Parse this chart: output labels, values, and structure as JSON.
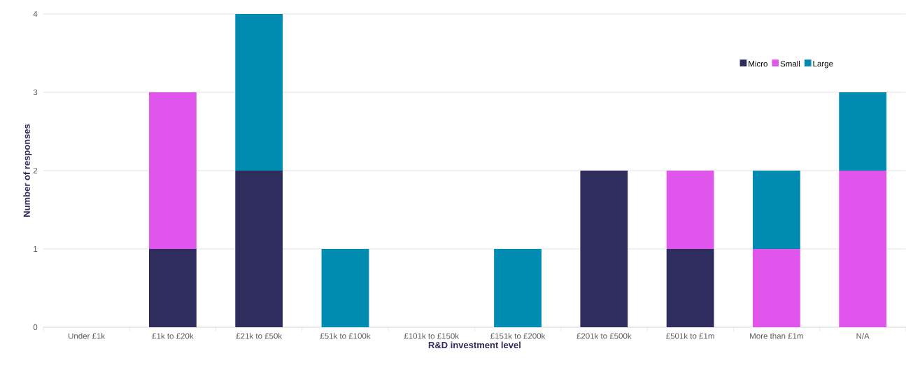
{
  "chart_data": {
    "type": "bar",
    "stacked": true,
    "xlabel": "R&D investment level",
    "ylabel": "Number of responses",
    "categories": [
      "Under £1k",
      "£1k to £20k",
      "£21k to £50k",
      "£51k to £100k",
      "£101k to £150k",
      "£151k to £200k",
      "£201k to £500k",
      "£501k to £1m",
      "More than £1m",
      "N/A"
    ],
    "series": [
      {
        "name": "Micro",
        "color": "#2e2d5e",
        "values": [
          0,
          1,
          2,
          0,
          0,
          0,
          2,
          1,
          0,
          0
        ]
      },
      {
        "name": "Small",
        "color": "#e056ec",
        "values": [
          0,
          2,
          0,
          0,
          0,
          0,
          0,
          1,
          1,
          2
        ]
      },
      {
        "name": "Large",
        "color": "#008bb0",
        "values": [
          0,
          0,
          2,
          1,
          0,
          1,
          0,
          0,
          1,
          1
        ]
      }
    ],
    "ylim": [
      0,
      4
    ],
    "yticks": [
      0,
      1,
      2,
      3,
      4
    ],
    "grid": "y",
    "legend": "top right"
  }
}
